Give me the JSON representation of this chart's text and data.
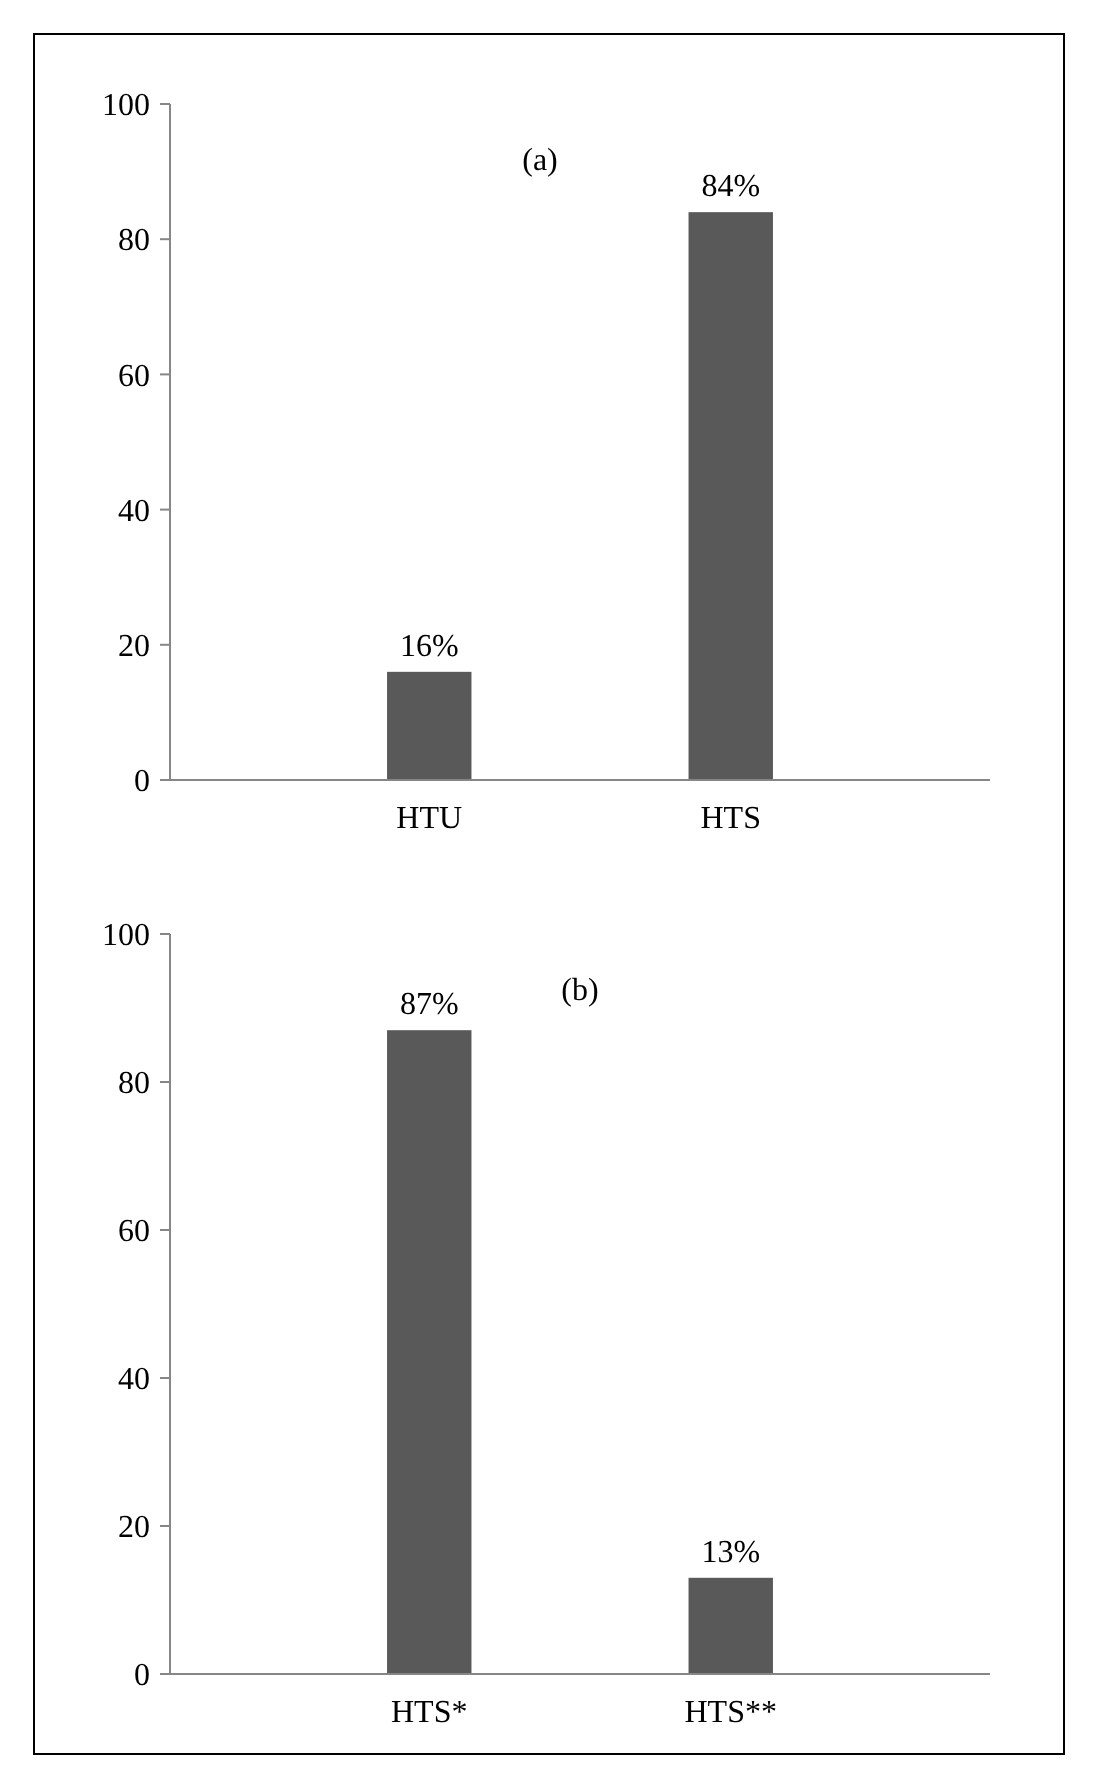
{
  "chart_data": [
    {
      "type": "bar",
      "title": "(a)",
      "categories": [
        "HTU",
        "HTS"
      ],
      "values": [
        16,
        84
      ],
      "value_labels": [
        "16%",
        "84%"
      ],
      "color": "#595959",
      "ylim": [
        0,
        100
      ],
      "yticks": [
        0,
        20,
        40,
        60,
        80,
        100
      ]
    },
    {
      "type": "bar",
      "title": "(b)",
      "categories": [
        "HTS*",
        "HTS**"
      ],
      "values": [
        87,
        13
      ],
      "value_labels": [
        "87%",
        "13%"
      ],
      "color": "#595959",
      "ylim": [
        0,
        100
      ],
      "yticks": [
        0,
        20,
        40,
        60,
        80,
        100
      ]
    }
  ]
}
